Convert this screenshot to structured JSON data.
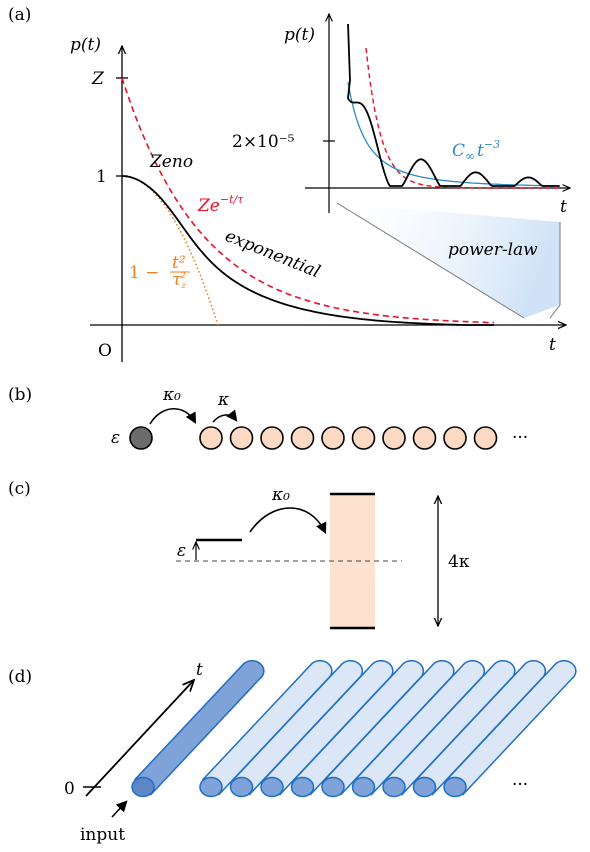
{
  "panels": {
    "a": {
      "label": "(a)",
      "y_axis_label": "p(t)",
      "x_axis_label": "t",
      "origin_label": "O",
      "tick_Z": "Z",
      "tick_1": "1",
      "zeno_label": "Zeno",
      "exp_curve_label_base": "Ze",
      "exp_curve_label_sup": "−t/τ",
      "short_time_label_base": "1 −",
      "short_time_label_num": "t²",
      "short_time_label_den": "τ",
      "short_time_label_den_sub": "z",
      "short_time_label_den_sup": "2",
      "exponential_label": "exponential",
      "inset": {
        "y_axis_label": "p(t)",
        "x_axis_label": "t",
        "tick_label": "2×10⁻⁵",
        "powerlaw_fit_base": "C",
        "powerlaw_fit_sub": "∞",
        "powerlaw_fit_t": "t",
        "powerlaw_fit_sup": "−3",
        "zoom_label": "power-law"
      }
    },
    "b": {
      "label": "(b)",
      "site_energy": "ε",
      "coupling_first": "κ₀",
      "coupling_chain": "κ",
      "ellipsis": "···",
      "chain_site_count": 10
    },
    "c": {
      "label": "(c)",
      "level_label": "ε",
      "coupling": "κ₀",
      "band_width": "4κ"
    },
    "d": {
      "label": "(d)",
      "time_axis": "t",
      "zero_label": "0",
      "input_label": "input",
      "ellipsis": "···",
      "waveguide_count": 10
    }
  },
  "colors": {
    "exp_decay": "#e8102a",
    "short_time": "#f07e1e",
    "power_law_fit": "#2a8cc4",
    "band_fill": "#fde2d0",
    "site_fill": "#fbd9c3",
    "driven_site_fill": "#6b6b6b",
    "waveguide_fill": "#dbe6f7",
    "driven_waveguide_fill": "#7fa2d8",
    "waveguide_stroke": "#1f6fc4",
    "zoom_gradient": "#cfe2f7"
  }
}
